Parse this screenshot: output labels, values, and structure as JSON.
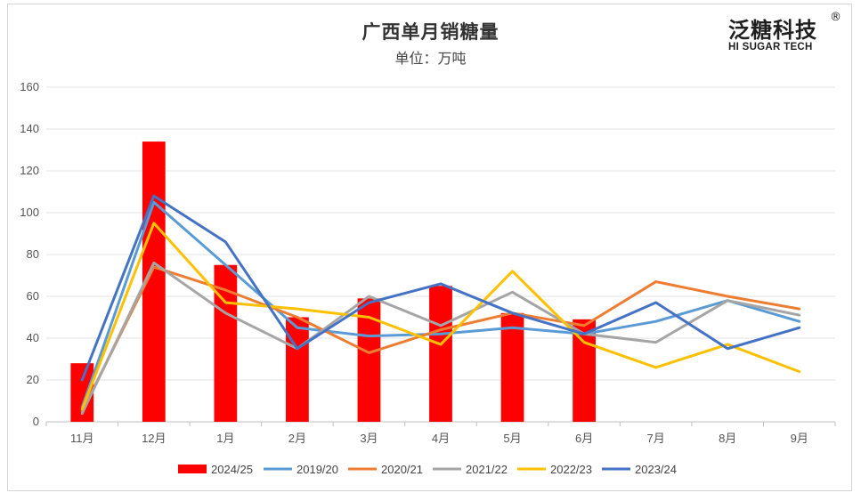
{
  "chart_data": {
    "type": "bar",
    "title": "广西单月销糖量",
    "subtitle": "单位：万吨",
    "categories": [
      "11月",
      "12月",
      "1月",
      "2月",
      "3月",
      "4月",
      "5月",
      "6月",
      "7月",
      "8月",
      "9月"
    ],
    "ylim": [
      0,
      160
    ],
    "yticks": [
      0,
      20,
      40,
      60,
      80,
      100,
      120,
      140,
      160
    ],
    "grid": true,
    "legend_position": "bottom",
    "bar_series": {
      "name": "2024/25",
      "color": "#ff0000",
      "values": [
        28,
        134,
        75,
        50,
        59,
        65,
        52,
        49,
        null,
        null,
        null
      ]
    },
    "line_series": [
      {
        "name": "2019/20",
        "color": "#5b9bd5",
        "values": [
          7,
          105,
          75,
          45,
          41,
          42,
          45,
          42,
          48,
          58,
          48
        ]
      },
      {
        "name": "2020/21",
        "color": "#ed7d31",
        "values": [
          5,
          74,
          63,
          50,
          33,
          44,
          52,
          46,
          67,
          60,
          54
        ]
      },
      {
        "name": "2021/22",
        "color": "#a5a5a5",
        "values": [
          4,
          76,
          52,
          35,
          60,
          46,
          62,
          42,
          38,
          58,
          51
        ]
      },
      {
        "name": "2022/23",
        "color": "#ffc000",
        "values": [
          6,
          95,
          57,
          54,
          50,
          37,
          72,
          38,
          26,
          37,
          24
        ]
      },
      {
        "name": "2023/24",
        "color": "#4472c4",
        "values": [
          20,
          108,
          86,
          35,
          57,
          66,
          52,
          42,
          57,
          35,
          45
        ]
      }
    ]
  },
  "logo": {
    "cn": "泛糖科技",
    "en": "HI SUGAR TECH",
    "reg": "®"
  }
}
